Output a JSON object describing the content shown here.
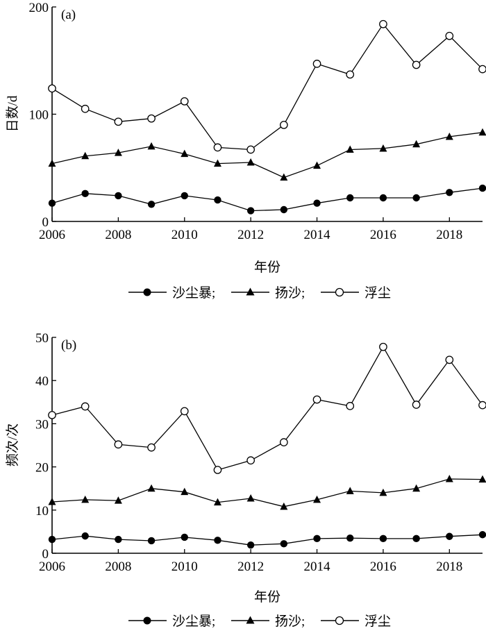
{
  "chart_data": [
    {
      "type": "line",
      "panel_label": "(a)",
      "ylabel": "日数/d",
      "xlabel": "年份",
      "x": [
        2006,
        2007,
        2008,
        2009,
        2010,
        2011,
        2012,
        2013,
        2014,
        2015,
        2016,
        2017,
        2018,
        2019
      ],
      "xticks": [
        2006,
        2008,
        2010,
        2012,
        2014,
        2016,
        2018
      ],
      "xlim": [
        2006,
        2019
      ],
      "ylim": [
        0,
        200
      ],
      "yticks": [
        0,
        100,
        200
      ],
      "series": [
        {
          "name": "沙尘暴",
          "marker": "filled-circle",
          "values": [
            17,
            26,
            24,
            16,
            24,
            20,
            10,
            11,
            17,
            22,
            22,
            22,
            27,
            31
          ]
        },
        {
          "name": "扬沙",
          "marker": "filled-triangle",
          "values": [
            54,
            61,
            64,
            70,
            63,
            54,
            55,
            41,
            52,
            67,
            68,
            72,
            79,
            83
          ]
        },
        {
          "name": "浮尘",
          "marker": "open-circle",
          "values": [
            124,
            105,
            93,
            96,
            112,
            69,
            67,
            90,
            147,
            137,
            184,
            146,
            173,
            142
          ]
        }
      ],
      "legend_items": [
        "沙尘暴;",
        "扬沙;",
        "浮尘"
      ],
      "legend_position": "bottom",
      "grid": false
    },
    {
      "type": "line",
      "panel_label": "(b)",
      "ylabel": "频次/次",
      "xlabel": "年份",
      "x": [
        2006,
        2007,
        2008,
        2009,
        2010,
        2011,
        2012,
        2013,
        2014,
        2015,
        2016,
        2017,
        2018,
        2019
      ],
      "xticks": [
        2006,
        2008,
        2010,
        2012,
        2014,
        2016,
        2018
      ],
      "xlim": [
        2006,
        2019
      ],
      "ylim": [
        0,
        50
      ],
      "yticks": [
        0,
        10,
        20,
        30,
        40,
        50
      ],
      "series": [
        {
          "name": "沙尘暴",
          "marker": "filled-circle",
          "values": [
            3.2,
            4,
            3.2,
            2.9,
            3.7,
            3,
            1.9,
            2.2,
            3.4,
            3.5,
            3.4,
            3.4,
            3.9,
            4.3
          ]
        },
        {
          "name": "扬沙",
          "marker": "filled-triangle",
          "values": [
            11.9,
            12.4,
            12.2,
            15,
            14.2,
            11.8,
            12.7,
            10.8,
            12.4,
            14.4,
            14,
            15,
            17.2,
            17.1
          ]
        },
        {
          "name": "浮尘",
          "marker": "open-circle",
          "values": [
            32,
            34,
            25.2,
            24.5,
            32.9,
            19.3,
            21.5,
            25.7,
            35.6,
            34.1,
            47.8,
            34.4,
            44.8,
            34.3
          ]
        }
      ],
      "legend_items": [
        "沙尘暴;",
        "扬沙;",
        "浮尘"
      ],
      "legend_position": "bottom",
      "grid": false
    }
  ]
}
